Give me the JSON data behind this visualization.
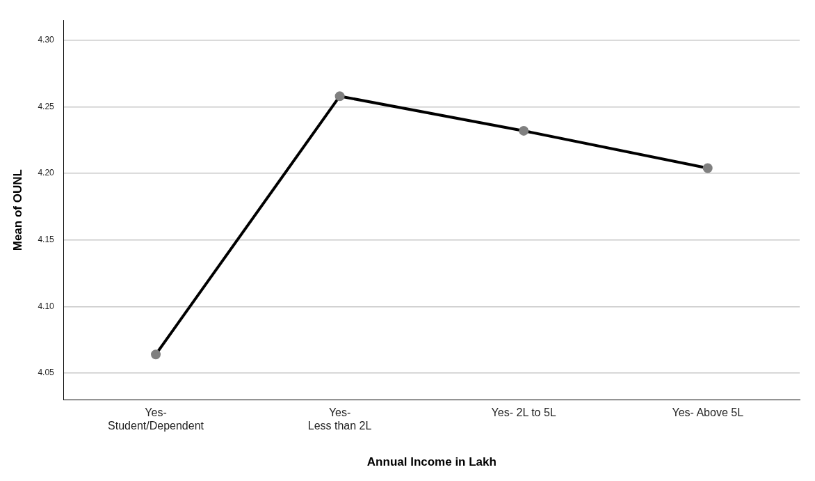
{
  "chart_data": {
    "type": "line",
    "xlabel": "Annual Income in Lakh",
    "ylabel": "Mean of OUNL",
    "categories": [
      "Yes- Student/Dependent",
      "Yes- Less than 2L",
      "Yes- 2L to 5L",
      "Yes- Above 5L"
    ],
    "series": [
      {
        "color": "#000000",
        "values": [
          4.064,
          4.258,
          4.232,
          4.204
        ]
      }
    ],
    "ylim": [
      4.03,
      4.315
    ],
    "yticks": [
      {
        "value": 4.05,
        "label": "4.05"
      },
      {
        "value": 4.1,
        "label": "4.10"
      },
      {
        "value": 4.15,
        "label": "4.15"
      },
      {
        "value": 4.2,
        "label": "4.20"
      },
      {
        "value": 4.25,
        "label": "4.25"
      },
      {
        "value": 4.3,
        "label": "4.30"
      }
    ],
    "grid": "y",
    "legend": false,
    "marker": "circle",
    "line_style": "solid"
  }
}
